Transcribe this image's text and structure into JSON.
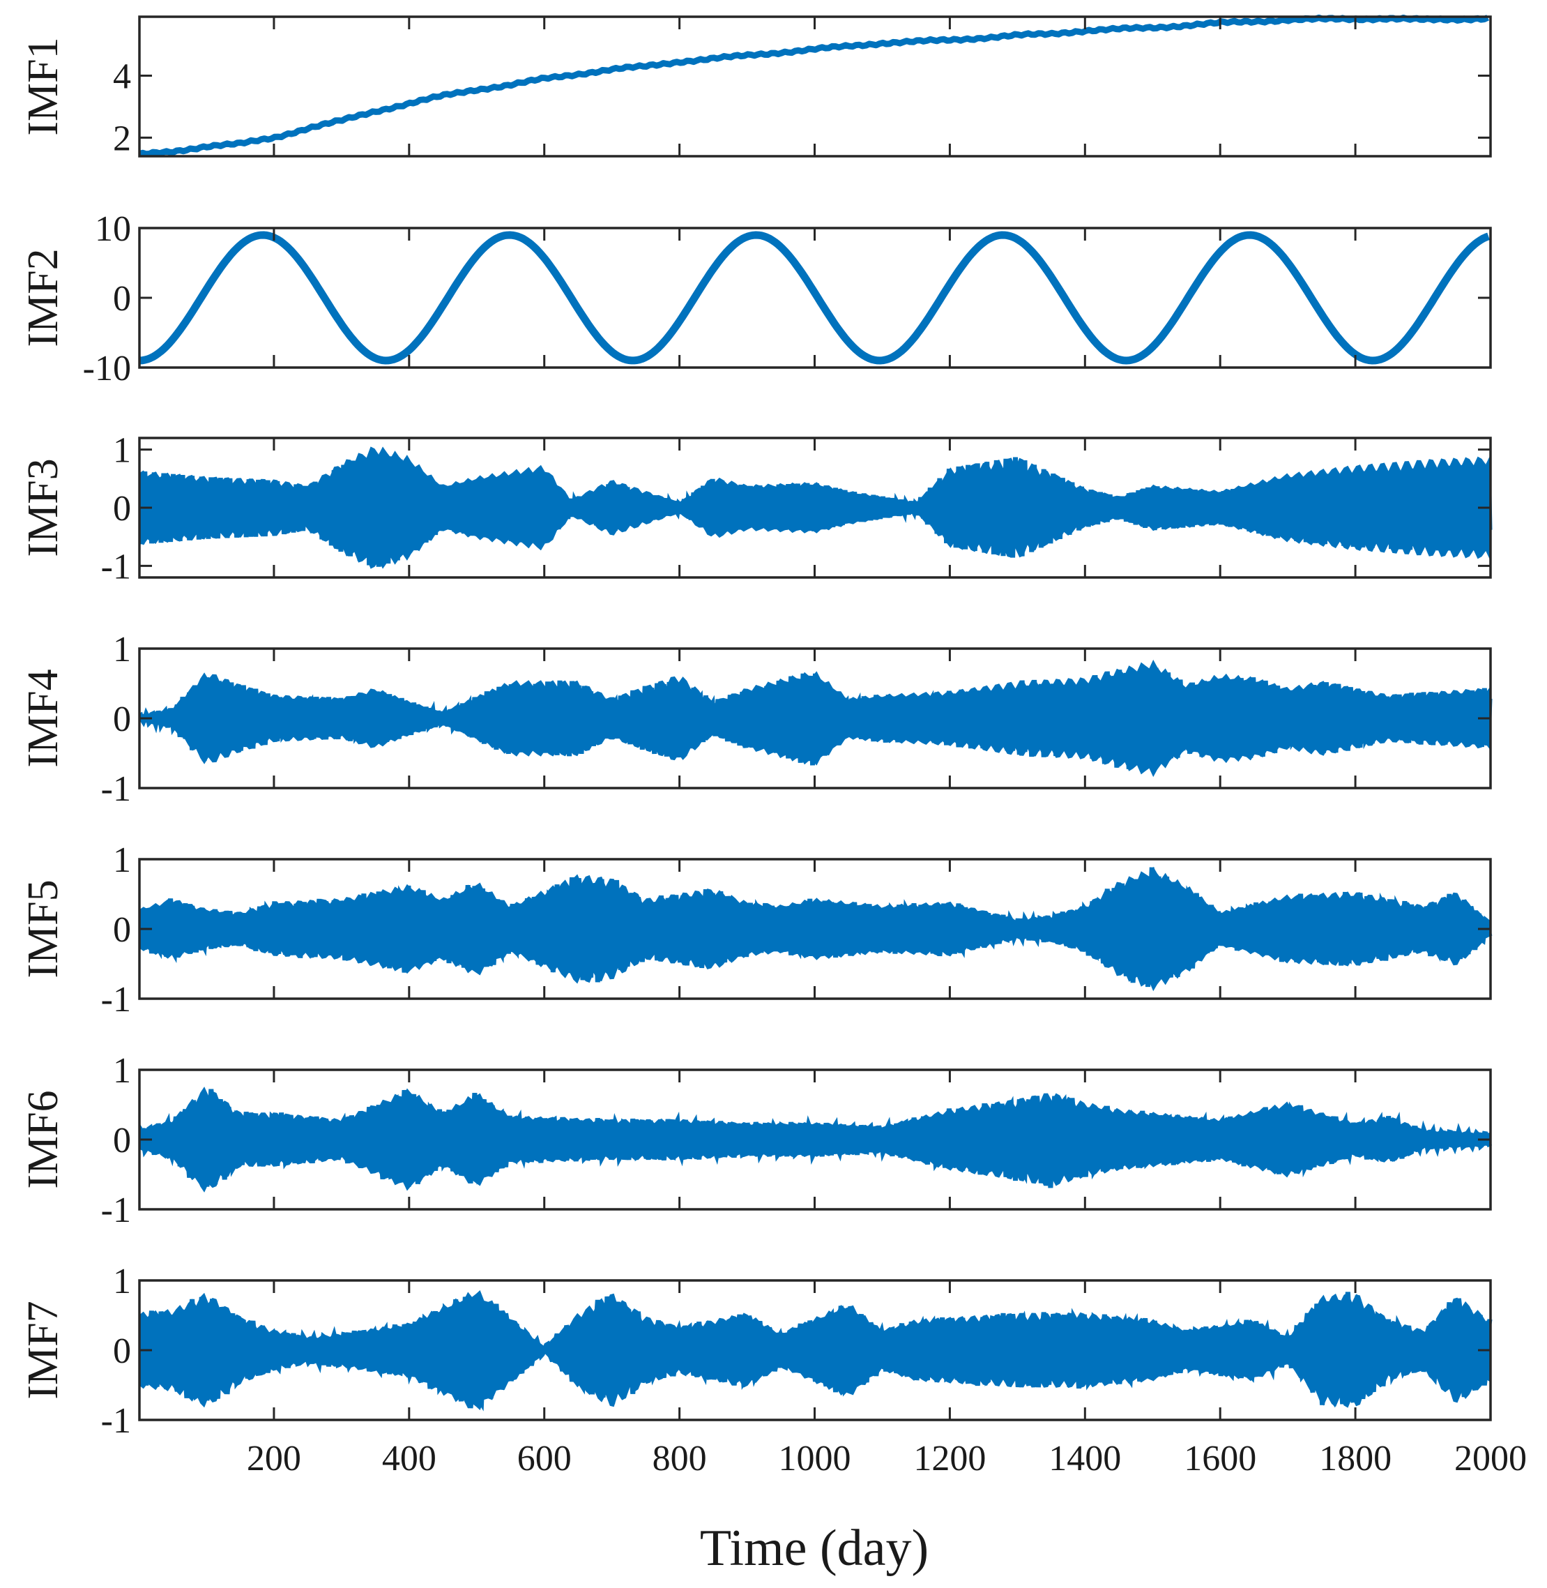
{
  "chart_data": {
    "type": "line",
    "layout": "7 vertically stacked panels sharing one x axis",
    "xlabel": "Time (day)",
    "xlim": [
      1,
      2000
    ],
    "xticks": [
      200,
      400,
      600,
      800,
      1000,
      1200,
      1400,
      1600,
      1800,
      2000
    ],
    "xtick_labels": [
      "200",
      "400",
      "600",
      "800",
      "1000",
      "1200",
      "1400",
      "1600",
      "1800",
      "2000"
    ],
    "line_color": "#0072bd",
    "panels": [
      {
        "name": "IMF1",
        "ylabel": "IMF1",
        "ylim": [
          1.4,
          5.9
        ],
        "yticks": [
          2,
          4
        ],
        "ytick_labels": [
          "2",
          "4"
        ],
        "kind": "trend",
        "points": [
          [
            1,
            1.45
          ],
          [
            50,
            1.55
          ],
          [
            100,
            1.72
          ],
          [
            150,
            1.8
          ],
          [
            200,
            2.0
          ],
          [
            250,
            2.3
          ],
          [
            300,
            2.55
          ],
          [
            350,
            2.85
          ],
          [
            400,
            3.1
          ],
          [
            450,
            3.35
          ],
          [
            500,
            3.55
          ],
          [
            550,
            3.7
          ],
          [
            600,
            3.9
          ],
          [
            650,
            4.05
          ],
          [
            700,
            4.2
          ],
          [
            750,
            4.3
          ],
          [
            800,
            4.45
          ],
          [
            850,
            4.55
          ],
          [
            900,
            4.65
          ],
          [
            950,
            4.75
          ],
          [
            1000,
            4.85
          ],
          [
            1050,
            4.95
          ],
          [
            1100,
            5.05
          ],
          [
            1150,
            5.1
          ],
          [
            1200,
            5.15
          ],
          [
            1250,
            5.22
          ],
          [
            1300,
            5.3
          ],
          [
            1350,
            5.35
          ],
          [
            1400,
            5.45
          ],
          [
            1450,
            5.5
          ],
          [
            1500,
            5.55
          ],
          [
            1550,
            5.62
          ],
          [
            1600,
            5.7
          ],
          [
            1650,
            5.75
          ],
          [
            1700,
            5.8
          ],
          [
            1750,
            5.82
          ],
          [
            1800,
            5.83
          ],
          [
            1850,
            5.84
          ],
          [
            1900,
            5.8
          ],
          [
            1950,
            5.82
          ],
          [
            2000,
            5.85
          ]
        ]
      },
      {
        "name": "IMF2",
        "ylabel": "IMF2",
        "ylim": [
          -10,
          10
        ],
        "yticks": [
          -10,
          0,
          10
        ],
        "ytick_labels": [
          "-10",
          "0",
          "10"
        ],
        "kind": "sinusoid",
        "amplitude": 9,
        "period_days": 365,
        "phase_offset": -0.25
      },
      {
        "name": "IMF3",
        "ylabel": "IMF3",
        "ylim": [
          -1.2,
          1.2
        ],
        "yticks": [
          -1,
          0,
          1
        ],
        "ytick_labels": [
          "-1",
          "0",
          "1"
        ],
        "kind": "oscillation",
        "cycle_days": 7,
        "envelope": [
          [
            1,
            0.65
          ],
          [
            100,
            0.55
          ],
          [
            200,
            0.5
          ],
          [
            250,
            0.4
          ],
          [
            300,
            0.8
          ],
          [
            350,
            1.1
          ],
          [
            400,
            0.9
          ],
          [
            450,
            0.4
          ],
          [
            500,
            0.55
          ],
          [
            600,
            0.75
          ],
          [
            640,
            0.15
          ],
          [
            700,
            0.5
          ],
          [
            800,
            0.1
          ],
          [
            850,
            0.55
          ],
          [
            900,
            0.4
          ],
          [
            1000,
            0.45
          ],
          [
            1050,
            0.3
          ],
          [
            1150,
            0.1
          ],
          [
            1200,
            0.7
          ],
          [
            1300,
            0.9
          ],
          [
            1400,
            0.35
          ],
          [
            1450,
            0.2
          ],
          [
            1500,
            0.4
          ],
          [
            1600,
            0.3
          ],
          [
            1700,
            0.6
          ],
          [
            1800,
            0.75
          ],
          [
            1900,
            0.85
          ],
          [
            2000,
            0.9
          ]
        ]
      },
      {
        "name": "IMF4",
        "ylabel": "IMF4",
        "ylim": [
          -1,
          1
        ],
        "yticks": [
          -1,
          0,
          1
        ],
        "ytick_labels": [
          "-1",
          "0",
          "1"
        ],
        "kind": "oscillation",
        "cycle_days": 9,
        "envelope": [
          [
            1,
            0.05
          ],
          [
            50,
            0.15
          ],
          [
            100,
            0.7
          ],
          [
            150,
            0.5
          ],
          [
            200,
            0.35
          ],
          [
            300,
            0.3
          ],
          [
            350,
            0.45
          ],
          [
            400,
            0.25
          ],
          [
            450,
            0.1
          ],
          [
            550,
            0.55
          ],
          [
            650,
            0.55
          ],
          [
            700,
            0.3
          ],
          [
            800,
            0.65
          ],
          [
            850,
            0.25
          ],
          [
            900,
            0.45
          ],
          [
            1000,
            0.7
          ],
          [
            1050,
            0.3
          ],
          [
            1100,
            0.35
          ],
          [
            1200,
            0.4
          ],
          [
            1300,
            0.55
          ],
          [
            1400,
            0.6
          ],
          [
            1500,
            0.85
          ],
          [
            1550,
            0.5
          ],
          [
            1600,
            0.65
          ],
          [
            1650,
            0.6
          ],
          [
            1700,
            0.45
          ],
          [
            1750,
            0.55
          ],
          [
            1850,
            0.35
          ],
          [
            2000,
            0.45
          ]
        ]
      },
      {
        "name": "IMF5",
        "ylabel": "IMF5",
        "ylim": [
          -1,
          1
        ],
        "yticks": [
          -1,
          0,
          1
        ],
        "ytick_labels": [
          "-1",
          "0",
          "1"
        ],
        "kind": "oscillation",
        "cycle_days": 11,
        "envelope": [
          [
            1,
            0.3
          ],
          [
            50,
            0.45
          ],
          [
            100,
            0.3
          ],
          [
            150,
            0.25
          ],
          [
            200,
            0.4
          ],
          [
            300,
            0.45
          ],
          [
            400,
            0.65
          ],
          [
            450,
            0.45
          ],
          [
            500,
            0.7
          ],
          [
            550,
            0.35
          ],
          [
            650,
            0.8
          ],
          [
            700,
            0.75
          ],
          [
            750,
            0.45
          ],
          [
            850,
            0.6
          ],
          [
            900,
            0.4
          ],
          [
            950,
            0.35
          ],
          [
            1000,
            0.45
          ],
          [
            1100,
            0.35
          ],
          [
            1200,
            0.4
          ],
          [
            1300,
            0.15
          ],
          [
            1350,
            0.2
          ],
          [
            1400,
            0.35
          ],
          [
            1450,
            0.7
          ],
          [
            1500,
            0.9
          ],
          [
            1550,
            0.65
          ],
          [
            1600,
            0.25
          ],
          [
            1700,
            0.5
          ],
          [
            1800,
            0.55
          ],
          [
            1900,
            0.35
          ],
          [
            1950,
            0.55
          ],
          [
            2000,
            0.1
          ]
        ]
      },
      {
        "name": "IMF6",
        "ylabel": "IMF6",
        "ylim": [
          -1,
          1
        ],
        "yticks": [
          -1,
          0,
          1
        ],
        "ytick_labels": [
          "-1",
          "0",
          "1"
        ],
        "kind": "oscillation",
        "cycle_days": 13,
        "envelope": [
          [
            1,
            0.15
          ],
          [
            50,
            0.3
          ],
          [
            100,
            0.8
          ],
          [
            150,
            0.4
          ],
          [
            200,
            0.4
          ],
          [
            300,
            0.3
          ],
          [
            400,
            0.75
          ],
          [
            450,
            0.4
          ],
          [
            500,
            0.7
          ],
          [
            550,
            0.35
          ],
          [
            700,
            0.3
          ],
          [
            800,
            0.3
          ],
          [
            900,
            0.25
          ],
          [
            1000,
            0.25
          ],
          [
            1100,
            0.2
          ],
          [
            1200,
            0.45
          ],
          [
            1300,
            0.6
          ],
          [
            1350,
            0.7
          ],
          [
            1400,
            0.55
          ],
          [
            1450,
            0.45
          ],
          [
            1500,
            0.4
          ],
          [
            1550,
            0.35
          ],
          [
            1600,
            0.3
          ],
          [
            1700,
            0.55
          ],
          [
            1800,
            0.25
          ],
          [
            1850,
            0.35
          ],
          [
            1900,
            0.15
          ],
          [
            2000,
            0.1
          ]
        ]
      },
      {
        "name": "IMF7",
        "ylabel": "IMF7",
        "ylim": [
          -1,
          1
        ],
        "yticks": [
          -1,
          0,
          1
        ],
        "ytick_labels": [
          "-1",
          "0",
          "1"
        ],
        "kind": "oscillation",
        "cycle_days": 15,
        "envelope": [
          [
            1,
            0.55
          ],
          [
            50,
            0.6
          ],
          [
            100,
            0.85
          ],
          [
            150,
            0.5
          ],
          [
            200,
            0.3
          ],
          [
            250,
            0.2
          ],
          [
            300,
            0.25
          ],
          [
            400,
            0.4
          ],
          [
            500,
            0.9
          ],
          [
            550,
            0.5
          ],
          [
            600,
            0.05
          ],
          [
            650,
            0.55
          ],
          [
            700,
            0.85
          ],
          [
            750,
            0.5
          ],
          [
            800,
            0.35
          ],
          [
            900,
            0.55
          ],
          [
            950,
            0.25
          ],
          [
            1050,
            0.7
          ],
          [
            1100,
            0.3
          ],
          [
            1150,
            0.45
          ],
          [
            1300,
            0.55
          ],
          [
            1400,
            0.55
          ],
          [
            1500,
            0.45
          ],
          [
            1550,
            0.3
          ],
          [
            1650,
            0.45
          ],
          [
            1700,
            0.2
          ],
          [
            1750,
            0.8
          ],
          [
            1800,
            0.85
          ],
          [
            1850,
            0.45
          ],
          [
            1900,
            0.3
          ],
          [
            1950,
            0.8
          ],
          [
            2000,
            0.45
          ]
        ]
      }
    ]
  }
}
